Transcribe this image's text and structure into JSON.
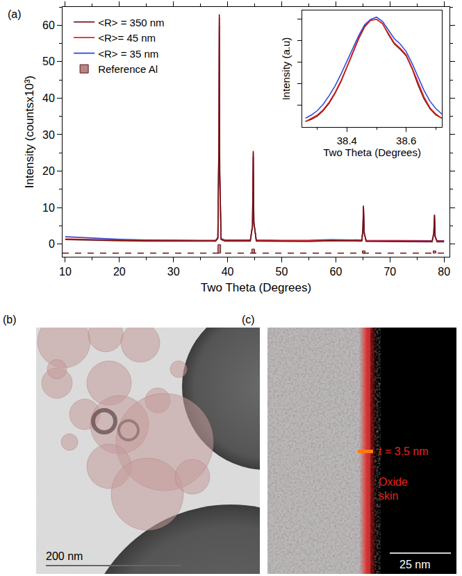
{
  "chart_data": [
    {
      "type": "line",
      "annotations": [
        "(a)"
      ],
      "x_label": "Two Theta (Degrees)",
      "y_label": "Intensity (countsx10³)",
      "xlim": [
        9.5,
        81
      ],
      "xticks": [
        10,
        20,
        30,
        40,
        50,
        60,
        70,
        80
      ],
      "ylim": [
        -3.5,
        65
      ],
      "yticks": [
        0,
        10,
        20,
        30,
        40,
        50,
        60
      ],
      "legend": "top-left",
      "x": [
        10,
        15,
        20,
        25,
        30,
        35,
        37.8,
        38.2,
        38.4,
        38.47,
        38.55,
        38.8,
        39.5,
        44.2,
        44.6,
        44.74,
        44.85,
        45.3,
        50,
        55,
        59,
        62,
        64.8,
        65.0,
        65.1,
        65.25,
        65.6,
        77.8,
        78.1,
        78.23,
        78.35,
        78.7,
        80
      ],
      "series": [
        {
          "name": "<R> = 350 nm",
          "color": "#6e1414",
          "values": [
            1.2,
            1.0,
            0.9,
            0.8,
            0.75,
            0.75,
            0.8,
            1.5,
            30,
            63,
            20,
            1.2,
            0.8,
            0.8,
            5,
            25.5,
            6,
            0.8,
            0.7,
            0.7,
            0.9,
            0.8,
            0.8,
            4,
            10.5,
            3,
            0.7,
            0.6,
            3,
            8,
            2,
            0.6,
            0.6
          ]
        },
        {
          "name": "<R>= 45 nm",
          "color": "#e3231c",
          "values": [
            1.4,
            1.2,
            1.1,
            1.0,
            0.9,
            0.9,
            0.95,
            1.7,
            29,
            62,
            19,
            1.4,
            1.0,
            1.0,
            5,
            25,
            6,
            1.0,
            0.9,
            0.9,
            1.1,
            1.0,
            1.0,
            4,
            10.5,
            3,
            0.9,
            0.8,
            3,
            8,
            2,
            0.8,
            0.8
          ]
        },
        {
          "name": "<R> = 35 nm",
          "color": "#2b44d6",
          "values": [
            2.0,
            1.6,
            1.3,
            1.1,
            1.0,
            1.0,
            1.05,
            1.8,
            28,
            60,
            19,
            1.5,
            1.1,
            1.1,
            5,
            24,
            6,
            1.1,
            1.0,
            1.0,
            1.2,
            1.1,
            1.1,
            4,
            10,
            3,
            1.0,
            0.9,
            3,
            7.5,
            2,
            0.9,
            0.9
          ]
        },
        {
          "name": "Reference Al",
          "type": "bar",
          "color": "#b98686",
          "line_style": "dashed",
          "base": -2.5,
          "x": [
            38.47,
            44.74,
            65.13,
            78.23
          ],
          "values": [
            2.3,
            1.1,
            0.6,
            0.6
          ]
        }
      ]
    },
    {
      "type": "line",
      "x_label": "Two Theta (Degrees)",
      "y_label": "Intensity (a.u)",
      "xlim": [
        38.25,
        38.72
      ],
      "xticks": [
        38.4,
        38.6
      ],
      "ylim": [
        0,
        1.08
      ],
      "yticks": [
        0.2,
        0.4,
        0.6,
        0.8,
        1.0
      ],
      "tick_labels": "x",
      "x": [
        38.26,
        38.28,
        38.3,
        38.32,
        38.34,
        38.36,
        38.38,
        38.4,
        38.42,
        38.44,
        38.46,
        38.48,
        38.5,
        38.52,
        38.54,
        38.56,
        38.58,
        38.6,
        38.62,
        38.64,
        38.66,
        38.68,
        38.7,
        38.72
      ],
      "series": [
        {
          "color": "#6e1414",
          "values": [
            0.05,
            0.07,
            0.1,
            0.15,
            0.22,
            0.31,
            0.42,
            0.55,
            0.69,
            0.82,
            0.93,
            0.99,
            1.0,
            0.96,
            0.86,
            0.77,
            0.72,
            0.66,
            0.54,
            0.39,
            0.26,
            0.17,
            0.11,
            0.08
          ]
        },
        {
          "color": "#e3231c",
          "values": [
            0.05,
            0.08,
            0.11,
            0.16,
            0.23,
            0.32,
            0.43,
            0.56,
            0.7,
            0.83,
            0.94,
            0.99,
            1.0,
            0.96,
            0.87,
            0.78,
            0.73,
            0.67,
            0.55,
            0.41,
            0.28,
            0.18,
            0.12,
            0.08
          ]
        },
        {
          "color": "#2b44d6",
          "values": [
            0.08,
            0.11,
            0.15,
            0.21,
            0.29,
            0.38,
            0.49,
            0.61,
            0.73,
            0.85,
            0.95,
            1.0,
            1.02,
            0.98,
            0.9,
            0.82,
            0.77,
            0.7,
            0.59,
            0.46,
            0.34,
            0.24,
            0.17,
            0.12
          ]
        }
      ]
    }
  ],
  "panels": [
    {
      "label": "(b)",
      "scale_bar": "200 nm"
    },
    {
      "label": "(c)",
      "annotations": [
        "t = 3.5 nm",
        "Oxide skin"
      ],
      "scale_bar": "25 nm"
    }
  ]
}
